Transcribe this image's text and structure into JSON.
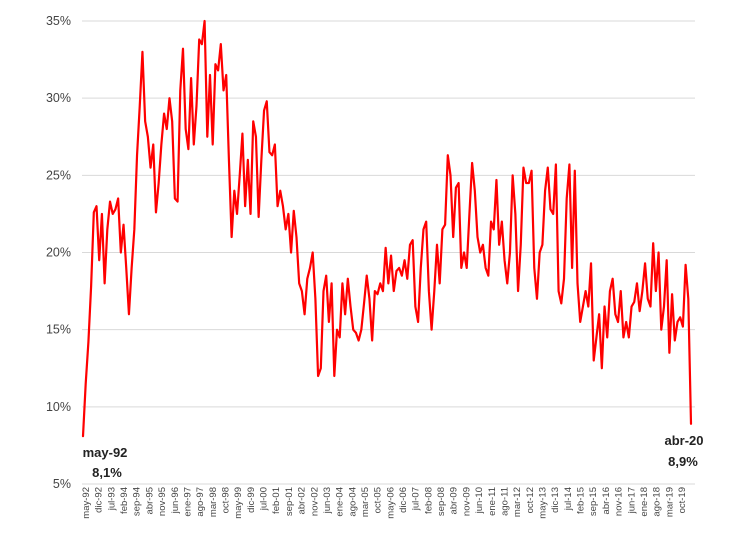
{
  "chart_data": {
    "type": "line",
    "title": "",
    "xlabel": "",
    "ylabel": "",
    "ylim": [
      5,
      35
    ],
    "yticks": [
      5,
      10,
      15,
      20,
      25,
      30,
      35
    ],
    "ytick_labels": [
      "5%",
      "10%",
      "15%",
      "20%",
      "25%",
      "30%",
      "35%"
    ],
    "grid": "horizontal",
    "x_start": "may-92",
    "x_end": "abr-20",
    "xtick_labels": [
      "may-92",
      "dic-92",
      "jul-93",
      "feb-94",
      "sep-94",
      "abr-95",
      "nov-95",
      "jun-96",
      "ene-97",
      "ago-97",
      "mar-98",
      "oct-98",
      "may-99",
      "dic-99",
      "jul-00",
      "feb-01",
      "sep-01",
      "abr-02",
      "nov-02",
      "jun-03",
      "ene-04",
      "ago-04",
      "mar-05",
      "oct-05",
      "may-06",
      "dic-06",
      "jul-07",
      "feb-08",
      "sep-08",
      "abr-09",
      "nov-09",
      "jun-10",
      "ene-11",
      "ago-11",
      "mar-12",
      "oct-12",
      "may-13",
      "dic-13",
      "jul-14",
      "feb-15",
      "sep-15",
      "abr-16",
      "nov-16",
      "jun-17",
      "ene-18",
      "ago-18",
      "mar-19",
      "oct-19"
    ],
    "series": [
      {
        "color": "#ff0000",
        "values": [
          8.1,
          11.5,
          14.2,
          17.8,
          22.6,
          23.0,
          19.5,
          22.5,
          18.0,
          21.5,
          23.3,
          22.5,
          22.8,
          23.5,
          20.0,
          21.8,
          19.0,
          16.0,
          19.0,
          21.5,
          26.3,
          29.5,
          33.0,
          28.5,
          27.5,
          25.5,
          27.0,
          22.6,
          24.5,
          27.0,
          29.0,
          28.0,
          30.0,
          28.5,
          23.5,
          23.3,
          30.5,
          33.2,
          28.0,
          26.7,
          31.3,
          27.0,
          29.5,
          33.8,
          33.5,
          35.0,
          27.5,
          31.5,
          27.0,
          32.2,
          31.8,
          33.5,
          30.5,
          31.5,
          26.0,
          21.0,
          24.0,
          22.5,
          25.0,
          27.7,
          23.0,
          26.0,
          22.5,
          28.5,
          27.5,
          22.3,
          26.0,
          29.2,
          29.8,
          26.5,
          26.3,
          27.0,
          23.0,
          24.0,
          23.0,
          21.5,
          22.5,
          20.0,
          22.7,
          21.0,
          18.0,
          17.5,
          16.0,
          18.3,
          19.0,
          20.0,
          17.0,
          12.0,
          12.5,
          17.5,
          18.5,
          15.5,
          18.0,
          12.0,
          15.0,
          14.5,
          18.0,
          16.0,
          18.3,
          16.5,
          15.0,
          14.8,
          14.3,
          15.0,
          16.7,
          18.5,
          17.0,
          14.3,
          17.5,
          17.3,
          18.0,
          17.5,
          20.3,
          18.0,
          19.8,
          17.5,
          18.8,
          19.0,
          18.5,
          19.5,
          18.3,
          20.5,
          20.8,
          16.5,
          15.5,
          19.0,
          21.5,
          22.0,
          17.5,
          15.0,
          17.5,
          20.5,
          18.0,
          21.5,
          21.8,
          26.3,
          25.0,
          21.0,
          24.2,
          24.5,
          19.0,
          20.0,
          19.0,
          22.5,
          25.8,
          24.0,
          21.0,
          20.0,
          20.5,
          19.0,
          18.5,
          22.0,
          21.5,
          24.7,
          20.5,
          22.0,
          19.5,
          18.0,
          20.0,
          25.0,
          22.5,
          17.5,
          20.5,
          25.5,
          24.5,
          24.5,
          25.3,
          19.0,
          17.0,
          20.0,
          20.5,
          24.0,
          25.5,
          22.8,
          22.5,
          25.7,
          17.5,
          16.7,
          18.3,
          23.5,
          25.7,
          19.0,
          25.3,
          18.0,
          15.5,
          16.5,
          17.5,
          16.5,
          19.3,
          13.0,
          14.5,
          16.0,
          12.5,
          16.5,
          14.5,
          17.5,
          18.3,
          16.0,
          15.5,
          17.5,
          14.5,
          15.5,
          14.5,
          16.5,
          16.8,
          18.0,
          16.2,
          17.5,
          19.3,
          17.0,
          16.5,
          20.6,
          17.5,
          20.0,
          15.0,
          16.5,
          19.5,
          13.5,
          17.3,
          14.3,
          15.5,
          15.8,
          15.2,
          19.2,
          17.0,
          8.9
        ]
      }
    ],
    "annotations": [
      {
        "point": "start",
        "name": "may-92",
        "value": "8,1%"
      },
      {
        "point": "end",
        "name": "abr-20",
        "value": "8,9%"
      }
    ]
  }
}
